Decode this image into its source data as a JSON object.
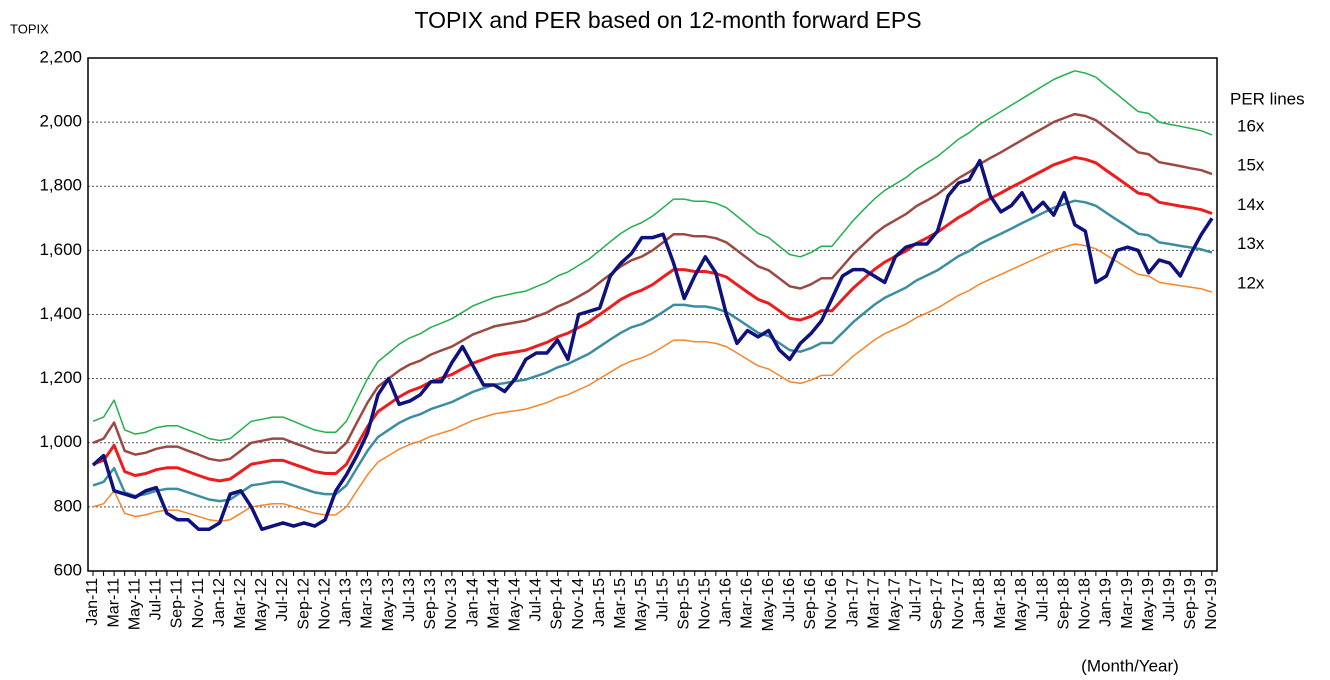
{
  "chart_data": {
    "type": "line",
    "title": "TOPIX and PER based on 12-month forward EPS",
    "y_label": "TOPIX",
    "x_label": "(Month/Year)",
    "legend_title": "PER lines",
    "categories": [
      "Jan-11",
      null,
      "Mar-11",
      null,
      "May-11",
      null,
      "Jul-11",
      null,
      "Sep-11",
      null,
      "Nov-11",
      null,
      "Jan-12",
      null,
      "Mar-12",
      null,
      "May-12",
      null,
      "Jul-12",
      null,
      "Sep-12",
      null,
      "Nov-12",
      null,
      "Jan-13",
      null,
      "Mar-13",
      null,
      "May-13",
      null,
      "Jul-13",
      null,
      "Sep-13",
      null,
      "Nov-13",
      null,
      "Jan-14",
      null,
      "Mar-14",
      null,
      "May-14",
      null,
      "Jul-14",
      null,
      "Sep-14",
      null,
      "Nov-14",
      null,
      "Jan-15",
      null,
      "Mar-15",
      null,
      "May-15",
      null,
      "Jul-15",
      null,
      "Sep-15",
      null,
      "Nov-15",
      null,
      "Jan-16",
      null,
      "Mar-16",
      null,
      "May-16",
      null,
      "Jul-16",
      null,
      "Sep-16",
      null,
      "Nov-16",
      null,
      "Jan-17",
      null,
      "Mar-17",
      null,
      "May-17",
      null,
      "Jul-17",
      null,
      "Sep-17",
      null,
      "Nov-17",
      null,
      "Jan-18",
      null,
      "Mar-18",
      null,
      "May-18",
      null,
      "Jul-18",
      null,
      "Sep-18",
      null,
      "Nov-18",
      null,
      "Jan-19",
      null,
      "Mar-19",
      null,
      "May-19",
      null,
      "Jul-19",
      null,
      "Sep-19",
      null,
      "Nov-19"
    ],
    "series": [
      {
        "name": "16x",
        "color": "#22b04c",
        "width": 1.5,
        "values": [
          1067,
          1080,
          1133,
          1040,
          1027,
          1033,
          1047,
          1053,
          1053,
          1040,
          1027,
          1013,
          1007,
          1013,
          1040,
          1067,
          1073,
          1080,
          1080,
          1067,
          1053,
          1040,
          1033,
          1033,
          1067,
          1133,
          1200,
          1253,
          1280,
          1307,
          1327,
          1340,
          1360,
          1373,
          1387,
          1407,
          1427,
          1440,
          1453,
          1460,
          1467,
          1473,
          1487,
          1500,
          1520,
          1533,
          1553,
          1573,
          1600,
          1627,
          1653,
          1673,
          1687,
          1707,
          1733,
          1760,
          1760,
          1753,
          1753,
          1747,
          1733,
          1707,
          1680,
          1653,
          1640,
          1613,
          1587,
          1580,
          1593,
          1613,
          1613,
          1653,
          1693,
          1727,
          1760,
          1787,
          1807,
          1827,
          1853,
          1873,
          1893,
          1920,
          1947,
          1967,
          1993,
          2013,
          2033,
          2053,
          2073,
          2093,
          2113,
          2133,
          2147,
          2160,
          2153,
          2140,
          2113,
          2087,
          2060,
          2033,
          2027,
          2000,
          1993,
          1987,
          1980,
          1973,
          1960
        ]
      },
      {
        "name": "15x",
        "color": "#9b4a41",
        "width": 2.5,
        "values": [
          1000,
          1013,
          1063,
          975,
          963,
          969,
          981,
          988,
          988,
          975,
          963,
          950,
          944,
          950,
          975,
          1000,
          1006,
          1013,
          1013,
          1000,
          988,
          975,
          969,
          969,
          1000,
          1063,
          1125,
          1175,
          1200,
          1225,
          1244,
          1256,
          1275,
          1288,
          1300,
          1319,
          1338,
          1350,
          1363,
          1369,
          1375,
          1381,
          1394,
          1406,
          1425,
          1438,
          1456,
          1475,
          1500,
          1525,
          1550,
          1569,
          1581,
          1600,
          1625,
          1650,
          1650,
          1644,
          1644,
          1638,
          1625,
          1600,
          1575,
          1550,
          1538,
          1513,
          1488,
          1481,
          1494,
          1513,
          1513,
          1550,
          1588,
          1619,
          1650,
          1675,
          1694,
          1713,
          1738,
          1756,
          1775,
          1800,
          1825,
          1844,
          1869,
          1888,
          1906,
          1925,
          1944,
          1963,
          1981,
          2000,
          2013,
          2025,
          2019,
          2006,
          1981,
          1956,
          1931,
          1906,
          1900,
          1875,
          1869,
          1863,
          1856,
          1850,
          1838
        ]
      },
      {
        "name": "14x",
        "color": "#ee1c1c",
        "width": 3,
        "values": [
          933,
          945,
          992,
          910,
          898,
          904,
          916,
          922,
          922,
          910,
          898,
          887,
          881,
          887,
          910,
          933,
          939,
          945,
          945,
          933,
          922,
          910,
          904,
          904,
          933,
          992,
          1050,
          1097,
          1120,
          1143,
          1161,
          1173,
          1190,
          1202,
          1213,
          1231,
          1248,
          1260,
          1272,
          1278,
          1283,
          1289,
          1301,
          1313,
          1330,
          1342,
          1359,
          1377,
          1400,
          1423,
          1447,
          1464,
          1476,
          1493,
          1517,
          1540,
          1540,
          1534,
          1534,
          1528,
          1517,
          1493,
          1470,
          1447,
          1435,
          1412,
          1388,
          1383,
          1394,
          1412,
          1412,
          1447,
          1482,
          1511,
          1540,
          1563,
          1581,
          1598,
          1622,
          1639,
          1657,
          1680,
          1703,
          1721,
          1744,
          1762,
          1779,
          1797,
          1814,
          1832,
          1849,
          1867,
          1878,
          1890,
          1884,
          1873,
          1849,
          1826,
          1803,
          1779,
          1773,
          1750,
          1744,
          1738,
          1733,
          1727,
          1715
        ]
      },
      {
        "name": "13x",
        "color": "#3b8ea0",
        "width": 2.5,
        "values": [
          867,
          878,
          921,
          845,
          834,
          840,
          850,
          856,
          856,
          845,
          834,
          823,
          818,
          823,
          845,
          867,
          872,
          878,
          878,
          867,
          856,
          845,
          840,
          840,
          867,
          921,
          975,
          1018,
          1040,
          1062,
          1078,
          1089,
          1105,
          1116,
          1127,
          1143,
          1159,
          1170,
          1181,
          1186,
          1192,
          1197,
          1208,
          1219,
          1235,
          1246,
          1262,
          1278,
          1300,
          1322,
          1343,
          1360,
          1370,
          1387,
          1408,
          1430,
          1430,
          1425,
          1425,
          1419,
          1408,
          1387,
          1365,
          1343,
          1333,
          1311,
          1289,
          1284,
          1295,
          1311,
          1311,
          1343,
          1376,
          1403,
          1430,
          1452,
          1468,
          1484,
          1506,
          1522,
          1538,
          1560,
          1582,
          1598,
          1620,
          1636,
          1652,
          1668,
          1685,
          1701,
          1717,
          1733,
          1744,
          1755,
          1750,
          1739,
          1717,
          1695,
          1674,
          1652,
          1647,
          1625,
          1620,
          1614,
          1609,
          1603,
          1593
        ]
      },
      {
        "name": "12x",
        "color": "#f7862a",
        "width": 1.5,
        "values": [
          800,
          810,
          850,
          780,
          770,
          775,
          785,
          790,
          790,
          780,
          770,
          760,
          755,
          760,
          780,
          800,
          805,
          810,
          810,
          800,
          790,
          780,
          775,
          775,
          800,
          850,
          900,
          940,
          960,
          980,
          995,
          1005,
          1020,
          1030,
          1040,
          1055,
          1070,
          1080,
          1090,
          1095,
          1100,
          1105,
          1115,
          1125,
          1140,
          1150,
          1165,
          1180,
          1200,
          1220,
          1240,
          1255,
          1265,
          1280,
          1300,
          1320,
          1320,
          1315,
          1315,
          1310,
          1300,
          1280,
          1260,
          1240,
          1230,
          1210,
          1190,
          1185,
          1195,
          1210,
          1210,
          1240,
          1270,
          1295,
          1320,
          1340,
          1355,
          1370,
          1390,
          1405,
          1420,
          1440,
          1460,
          1475,
          1495,
          1510,
          1525,
          1540,
          1555,
          1570,
          1585,
          1600,
          1610,
          1620,
          1615,
          1605,
          1585,
          1565,
          1545,
          1525,
          1520,
          1500,
          1495,
          1490,
          1485,
          1480,
          1470
        ]
      },
      {
        "color": "#0f127e",
        "width": 3.5,
        "values": [
          930,
          960,
          850,
          840,
          830,
          850,
          860,
          780,
          760,
          760,
          730,
          730,
          750,
          840,
          850,
          800,
          730,
          740,
          750,
          740,
          750,
          740,
          760,
          850,
          900,
          960,
          1030,
          1150,
          1200,
          1120,
          1130,
          1150,
          1190,
          1190,
          1250,
          1300,
          1240,
          1180,
          1180,
          1160,
          1200,
          1260,
          1280,
          1280,
          1320,
          1260,
          1400,
          1410,
          1420,
          1520,
          1560,
          1590,
          1640,
          1640,
          1650,
          1560,
          1450,
          1520,
          1580,
          1530,
          1400,
          1310,
          1350,
          1330,
          1350,
          1290,
          1260,
          1310,
          1340,
          1380,
          1450,
          1520,
          1540,
          1540,
          1520,
          1500,
          1580,
          1610,
          1620,
          1620,
          1660,
          1770,
          1810,
          1820,
          1880,
          1770,
          1720,
          1740,
          1780,
          1720,
          1750,
          1710,
          1780,
          1680,
          1660,
          1500,
          1520,
          1600,
          1610,
          1600,
          1530,
          1570,
          1560,
          1520,
          1590,
          1650,
          1700
        ]
      }
    ],
    "ylim": [
      600,
      2200
    ],
    "yticks": [
      {
        "value": 600,
        "label": "600"
      },
      {
        "value": 800,
        "label": "800"
      },
      {
        "value": 1000,
        "label": "1,000"
      },
      {
        "value": 1200,
        "label": "1,200"
      },
      {
        "value": 1400,
        "label": "1,400"
      },
      {
        "value": 1600,
        "label": "1,600"
      },
      {
        "value": 1800,
        "label": "1,800"
      },
      {
        "value": 2000,
        "label": "2,000"
      },
      {
        "value": 2200,
        "label": "2,200"
      }
    ],
    "grid": true
  }
}
